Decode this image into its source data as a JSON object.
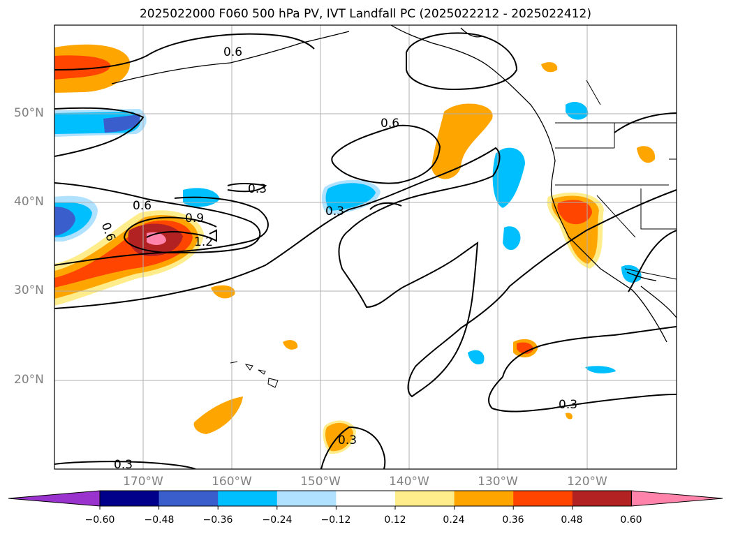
{
  "title": "2025022000 F060 500 hPa PV, IVT Landfall PC (2025022212 - 2025022412)",
  "map": {
    "lon_range": [
      -180,
      -110
    ],
    "lat_range": [
      10,
      60
    ],
    "grid": true,
    "lat_labels": [
      "50°N",
      "40°N",
      "30°N",
      "20°N"
    ],
    "lon_labels": [
      "170°W",
      "160°W",
      "150°W",
      "140°W",
      "130°W",
      "120°W"
    ],
    "contour_labels": [
      "0.6",
      "0.6",
      "0.9",
      "1.2",
      "0.3",
      "0.3",
      "0.6",
      "0.3",
      "0.3",
      "0.3",
      "0.6"
    ]
  },
  "colorbar": {
    "extend": "both",
    "ticks": [
      "−0.60",
      "−0.48",
      "−0.36",
      "−0.24",
      "−0.12",
      "0.12",
      "0.24",
      "0.36",
      "0.48",
      "0.60"
    ],
    "colors": [
      "#9a32cd",
      "#00008b",
      "#3a5fcd",
      "#00bfff",
      "#b0e2ff",
      "#ffffff",
      "#ffec8b",
      "#ffa500",
      "#ff4500",
      "#b22222",
      "#ff83aa"
    ]
  }
}
